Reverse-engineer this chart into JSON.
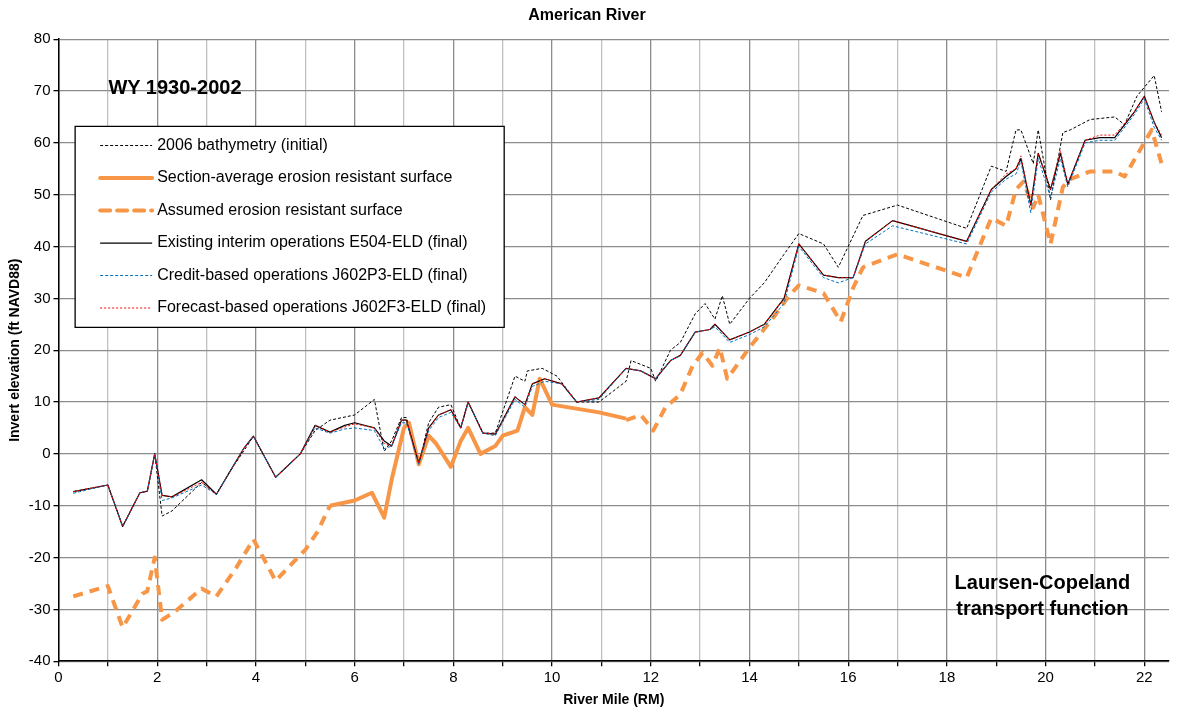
{
  "chart_data": {
    "type": "line",
    "title": "American River",
    "xlabel": "River Mile (RM)",
    "ylabel": "Invert elevation (ft NAVD88)",
    "xlim": [
      0,
      22.5
    ],
    "ylim": [
      -40,
      80
    ],
    "xticks": [
      0,
      {
        "value": 1,
        "label": null
      },
      2,
      {
        "value": 3,
        "label": null
      },
      4,
      {
        "value": 5,
        "label": null
      },
      6,
      {
        "value": 7,
        "label": null
      },
      8,
      {
        "value": 9,
        "label": null
      },
      10,
      {
        "value": 11,
        "label": null
      },
      12,
      {
        "value": 13,
        "label": null
      },
      14,
      {
        "value": 15,
        "label": null
      },
      16,
      {
        "value": 17,
        "label": null
      },
      18,
      {
        "value": 19,
        "label": null
      },
      20,
      {
        "value": 21,
        "label": null
      },
      22
    ],
    "yticks": [
      -40,
      -30,
      -20,
      -10,
      0,
      10,
      20,
      30,
      40,
      50,
      60,
      70,
      80
    ],
    "grid": true,
    "legend": "top left",
    "marker": "none",
    "annotations": [
      "WY 1930-2002",
      "Laursen-Copeland\ntransport function"
    ],
    "series": [
      {
        "name": "2006 bathymetry (initial)",
        "color": "#000000",
        "line_style": "dashed",
        "x": [
          0.3,
          1.0,
          1.3,
          1.65,
          1.8,
          1.95,
          2.1,
          2.3,
          2.9,
          3.2,
          3.5,
          3.75,
          3.95,
          4.4,
          4.9,
          5.2,
          5.5,
          6.0,
          6.4,
          6.6,
          6.75,
          6.95,
          7.05,
          7.3,
          7.5,
          7.7,
          7.95,
          8.15,
          8.3,
          8.6,
          8.85,
          9.25,
          9.45,
          9.5,
          9.8,
          10.1,
          10.5,
          10.95,
          11.5,
          11.6,
          12.0,
          12.1,
          12.4,
          12.6,
          12.9,
          13.1,
          13.3,
          13.45,
          13.6,
          14.0,
          14.3,
          14.7,
          15.0,
          15.5,
          15.8,
          16.3,
          17.0,
          18.4,
          18.9,
          19.2,
          19.4,
          19.5,
          19.75,
          19.85,
          20.1,
          20.35,
          20.5,
          20.9,
          21.4,
          21.6,
          21.85,
          22.2,
          22.35
        ],
        "values": [
          -7.3,
          -6,
          -14,
          -7.5,
          -7.2,
          0,
          -12,
          -11,
          -5.5,
          -7.8,
          -3,
          0.5,
          3.4,
          -4.5,
          0,
          4.5,
          6.5,
          7.5,
          10.5,
          0.5,
          2.5,
          7,
          7,
          -2,
          6,
          9,
          9.5,
          5,
          10,
          4,
          4,
          15,
          14,
          16,
          16.5,
          15,
          10,
          10,
          14,
          18,
          16.5,
          14,
          20,
          21.5,
          27,
          29,
          26,
          30.5,
          25,
          30,
          33,
          38.5,
          42.5,
          40.5,
          36,
          46,
          48,
          43.5,
          55.5,
          54.5,
          62.5,
          62.5,
          56,
          62.5,
          49,
          62,
          62.5,
          64.5,
          65,
          63.5,
          69,
          73,
          66
        ]
      },
      {
        "name": "Section-average erosion resistant surface",
        "color": "#f79646",
        "line_style": "solid",
        "x": [
          5.5,
          6.0,
          6.35,
          6.6,
          6.75,
          7.0,
          7.1,
          7.3,
          7.5,
          7.65,
          7.95,
          8.15,
          8.3,
          8.55,
          8.85,
          9.0,
          9.3,
          9.45,
          9.6,
          9.75,
          10.0,
          10.95,
          11.5
        ],
        "values": [
          -10,
          -9,
          -7.5,
          -12.3,
          -5,
          5,
          6,
          -2,
          3.5,
          2,
          -2.5,
          2.5,
          5,
          0,
          1.5,
          3.5,
          4.5,
          9,
          7.5,
          14.5,
          9.5,
          8,
          6.8
        ]
      },
      {
        "name": "Assumed erosion resistant surface",
        "color": "#f79646",
        "line_style": "dashed",
        "x": [
          0.3,
          1.0,
          1.3,
          1.7,
          1.8,
          1.95,
          2.1,
          2.35,
          2.9,
          3.2,
          3.6,
          3.95,
          4.4,
          5.0,
          5.25,
          5.5,
          8.0,
          11.5,
          11.8,
          12.05,
          12.3,
          12.6,
          12.85,
          13.05,
          13.25,
          13.4,
          13.55,
          14.0,
          14.5,
          14.8,
          15.0,
          15.5,
          15.85,
          16.1,
          16.3,
          17.0,
          18.4,
          18.9,
          19.2,
          19.4,
          19.55,
          19.75,
          19.85,
          20.1,
          20.35,
          20.5,
          20.9,
          21.4,
          21.6,
          22.15,
          22.35
        ],
        "values": [
          -27.5,
          -25.5,
          -33.5,
          -27,
          -26.5,
          -20,
          -32,
          -30.5,
          -26,
          -27.5,
          -22,
          -16.5,
          -24.5,
          -18.5,
          -15,
          -10,
          null,
          6.5,
          7.5,
          4.5,
          9,
          11.5,
          17,
          19.5,
          17,
          20.5,
          14.5,
          20.5,
          26.5,
          30.5,
          32.5,
          31,
          25.5,
          32,
          36,
          38.5,
          34,
          45.5,
          44,
          51,
          52.5,
          47.5,
          50,
          40.5,
          51.5,
          53,
          54.5,
          54.5,
          53.5,
          62.5,
          56
        ]
      },
      {
        "name": "Existing interim operations E504-ELD (final)",
        "color": "#000000",
        "line_style": "solid",
        "x": [
          0.3,
          1.0,
          1.3,
          1.65,
          1.8,
          1.95,
          2.1,
          2.3,
          2.9,
          3.2,
          3.5,
          3.75,
          3.95,
          4.4,
          4.9,
          5.2,
          5.5,
          5.8,
          6.0,
          6.4,
          6.6,
          6.75,
          6.95,
          7.05,
          7.3,
          7.5,
          7.7,
          7.95,
          8.15,
          8.3,
          8.6,
          8.85,
          9.25,
          9.45,
          9.6,
          9.85,
          10.2,
          10.5,
          10.95,
          11.5,
          11.8,
          12.0,
          12.1,
          12.4,
          12.6,
          12.9,
          13.2,
          13.3,
          13.6,
          14.0,
          14.3,
          14.7,
          15.0,
          15.5,
          15.8,
          16.1,
          16.35,
          16.9,
          18.4,
          18.9,
          19.2,
          19.4,
          19.5,
          19.7,
          19.85,
          20.1,
          20.3,
          20.45,
          20.8,
          21.1,
          21.4,
          21.8,
          22.0,
          22.2,
          22.35
        ],
        "values": [
          -7.3,
          -6,
          -14,
          -7.5,
          -7.2,
          0,
          -8,
          -8.3,
          -5,
          -7.8,
          -3,
          1,
          3.4,
          -4.5,
          0,
          5.5,
          4.2,
          5.5,
          6,
          5,
          2.5,
          1.5,
          6.5,
          6.5,
          -1.8,
          5,
          7.5,
          8.5,
          5,
          10,
          4,
          3.8,
          11,
          9.5,
          13.5,
          14.5,
          13.5,
          10,
          10.8,
          16.5,
          16,
          15,
          14.5,
          18,
          19,
          23.5,
          24,
          25,
          22,
          23.5,
          25,
          30,
          40.5,
          34.5,
          34,
          34,
          41,
          45,
          41,
          51,
          53.5,
          55,
          57,
          48,
          58,
          51,
          58,
          52,
          60.5,
          61,
          61,
          66,
          69,
          64,
          61
        ]
      },
      {
        "name": "Credit-based operations J602P3-ELD (final)",
        "color": "#0070c0",
        "line_style": "dashed",
        "x": [
          0.3,
          1.0,
          1.3,
          1.65,
          1.8,
          1.95,
          2.1,
          2.3,
          2.9,
          3.2,
          3.5,
          3.75,
          3.95,
          4.4,
          4.9,
          5.2,
          5.5,
          5.8,
          6.0,
          6.4,
          6.6,
          6.75,
          6.95,
          7.05,
          7.3,
          7.5,
          7.7,
          7.95,
          8.15,
          8.3,
          8.6,
          8.85,
          9.25,
          9.45,
          9.6,
          9.85,
          10.2,
          10.5,
          10.95,
          11.5,
          11.8,
          12.0,
          12.1,
          12.4,
          12.6,
          12.9,
          13.2,
          13.3,
          13.6,
          14.0,
          14.3,
          14.7,
          15.0,
          15.5,
          15.8,
          16.1,
          16.35,
          16.9,
          18.4,
          18.9,
          19.2,
          19.4,
          19.5,
          19.7,
          19.85,
          20.1,
          20.3,
          20.45,
          20.8,
          21.1,
          21.4,
          21.8,
          22.0,
          22.2,
          22.35
        ],
        "values": [
          -7.6,
          -6,
          -14,
          -7.5,
          -7.2,
          0,
          -9,
          -8.5,
          -6,
          -7.8,
          -3,
          1,
          3.4,
          -4.5,
          0,
          5,
          4,
          4.8,
          5,
          4.5,
          1,
          1.5,
          6,
          6,
          -2,
          4.5,
          7,
          8,
          5,
          10,
          4,
          3.5,
          10.5,
          9,
          13,
          14,
          13.5,
          10,
          10.5,
          16.5,
          16,
          15,
          14.5,
          18,
          19,
          23.5,
          24,
          24.5,
          21.5,
          23,
          24.5,
          29,
          40,
          34,
          33,
          34,
          40.5,
          44,
          40.5,
          50.5,
          53,
          54,
          56.5,
          46.5,
          57,
          49.5,
          57,
          51.5,
          60,
          60.5,
          60.5,
          65.5,
          68.5,
          63,
          60.5
        ]
      },
      {
        "name": "Forecast-based operations J602F3-ELD (final)",
        "color": "#ff0000",
        "line_style": "dotted",
        "x": [
          0.3,
          1.0,
          1.3,
          1.65,
          1.8,
          1.95,
          2.1,
          2.3,
          2.9,
          3.2,
          3.5,
          3.75,
          3.95,
          4.4,
          4.9,
          5.2,
          5.5,
          5.8,
          6.0,
          6.4,
          6.6,
          6.75,
          6.95,
          7.05,
          7.3,
          7.5,
          7.7,
          7.95,
          8.15,
          8.3,
          8.6,
          8.85,
          9.25,
          9.45,
          9.6,
          9.85,
          10.2,
          10.5,
          10.95,
          11.5,
          11.8,
          12.0,
          12.1,
          12.4,
          12.6,
          12.9,
          13.2,
          13.3,
          13.6,
          14.0,
          14.3,
          14.7,
          15.0,
          15.5,
          15.8,
          16.1,
          16.35,
          16.9,
          18.4,
          18.9,
          19.2,
          19.4,
          19.5,
          19.7,
          19.85,
          20.1,
          20.3,
          20.45,
          20.8,
          21.1,
          21.4,
          21.8,
          22.0,
          22.2,
          22.35
        ],
        "values": [
          -7.3,
          -6,
          -14,
          -7.5,
          -7.2,
          0,
          -8,
          -8.3,
          -5.5,
          -7.8,
          -3,
          1,
          3.4,
          -4.5,
          0,
          5.5,
          4.2,
          5.2,
          5.8,
          5,
          2,
          1.5,
          6.5,
          6.5,
          -1.8,
          5,
          7.5,
          8.5,
          5,
          10,
          4,
          3.8,
          11,
          9.5,
          13.5,
          14.5,
          13.5,
          10,
          10.8,
          16.5,
          16,
          15,
          14.5,
          18,
          19,
          23.5,
          24,
          25,
          22,
          23.5,
          25,
          30,
          40.5,
          34.5,
          34,
          34,
          41,
          45,
          41,
          51,
          54,
          55,
          57.5,
          48,
          58,
          51,
          58.5,
          52,
          60.5,
          61.5,
          61.5,
          66,
          69,
          64,
          61.5
        ]
      }
    ]
  }
}
